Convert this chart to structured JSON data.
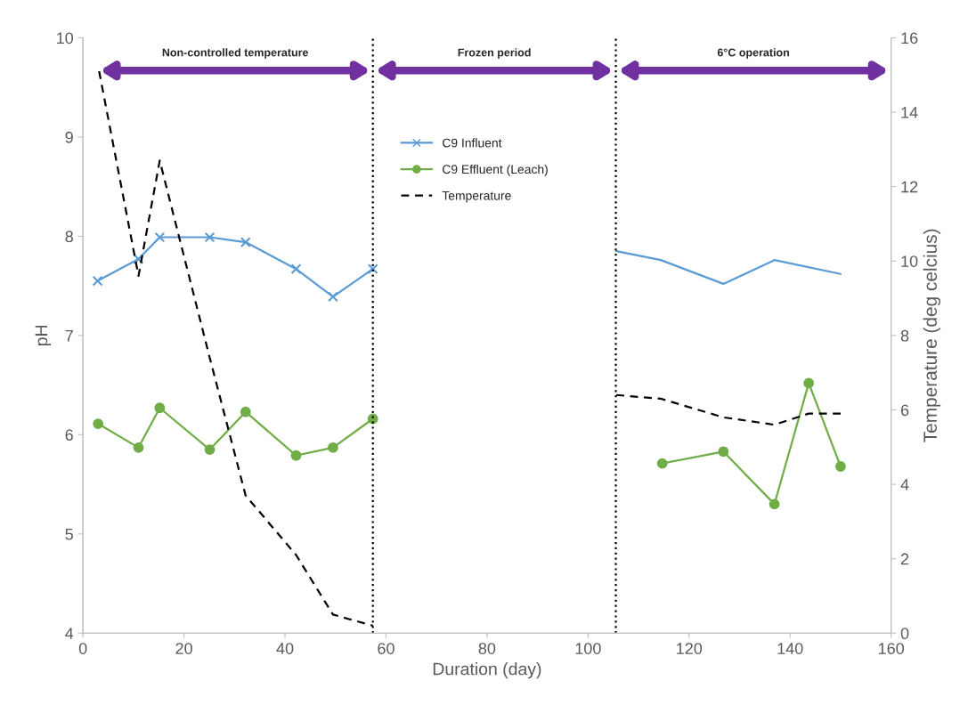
{
  "chart_data": {
    "type": "line",
    "xlabel": "Duration (day)",
    "ylabel": "pH",
    "y2label": "Temperature (deg celcius)",
    "xlim": [
      0,
      160
    ],
    "xticks": [
      0,
      20,
      40,
      60,
      80,
      100,
      120,
      140,
      160
    ],
    "ylim": [
      4,
      10
    ],
    "yticks": [
      4,
      5,
      6,
      7,
      8,
      9,
      10
    ],
    "y2lim": [
      0,
      16
    ],
    "y2ticks": [
      0,
      2,
      4,
      6,
      8,
      10,
      12,
      14,
      16
    ],
    "grid": false,
    "legend": "top center",
    "series": [
      {
        "name": "C9 Influent",
        "color": "#5b9bd5",
        "marker": "cross",
        "x": [
          2.9,
          11.0,
          15.2,
          25.1,
          32.2,
          42.2,
          49.5,
          57.4
        ],
        "values": [
          7.55,
          7.77,
          7.99,
          7.99,
          7.94,
          7.67,
          7.39,
          7.67
        ]
      },
      {
        "color": "#5b9bd5",
        "marker": "none",
        "x": [
          105.6,
          114.4,
          126.8,
          136.9,
          150.0
        ],
        "values": [
          7.85,
          7.76,
          7.52,
          7.76,
          7.62
        ]
      },
      {
        "name": "C9 Effluent (Leach)",
        "color": "#70ad47",
        "marker": "circle",
        "x": [
          3.0,
          11.0,
          15.2,
          25.1,
          32.2,
          42.2,
          49.5,
          57.4
        ],
        "values": [
          6.11,
          5.87,
          6.27,
          5.85,
          6.23,
          5.79,
          5.87,
          6.16
        ]
      },
      {
        "color": "#70ad47",
        "marker": "circle",
        "x": [
          114.7,
          126.8,
          136.9,
          143.7,
          150.0
        ],
        "values": [
          5.71,
          5.83,
          5.3,
          6.52,
          5.68
        ]
      },
      {
        "name": "Temperature",
        "color": "#000000",
        "marker": "none",
        "line_style": "dashed",
        "axis": "y2",
        "x": [
          3.2,
          11.0,
          15.2,
          25.1,
          32.2,
          42.2,
          49.5,
          57.4
        ],
        "values": [
          15.1,
          9.6,
          12.7,
          7.4,
          3.7,
          2.1,
          0.5,
          0.2
        ]
      },
      {
        "color": "#000000",
        "marker": "none",
        "line_style": "dashed",
        "axis": "y2",
        "x": [
          105.6,
          114.4,
          126.8,
          136.9,
          143.7,
          150.0
        ],
        "values": [
          6.4,
          6.3,
          5.8,
          5.6,
          5.9,
          5.9
        ]
      }
    ],
    "ref_lines": [
      {
        "axis": "x",
        "value": 57.4,
        "color": "#000000",
        "line_style": "dotted"
      },
      {
        "axis": "x",
        "value": 105.5,
        "color": "#000000",
        "line_style": "dotted"
      }
    ],
    "annotations": [
      "Non-controlled temperature",
      "Frozen period",
      "6°C operation"
    ]
  }
}
